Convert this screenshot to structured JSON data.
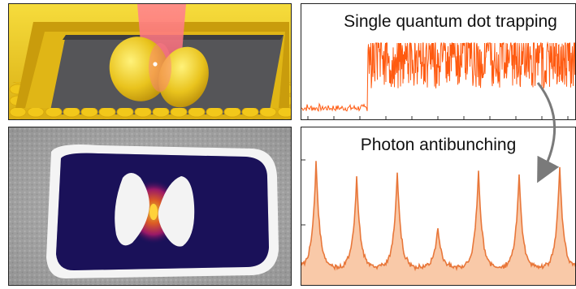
{
  "figure": {
    "panels": {
      "trapping_trace": {
        "title": "Single quantum dot trapping"
      },
      "antibunching": {
        "title": "Photon antibunching"
      }
    },
    "colors": {
      "gold": "#e8c21a",
      "laser": "#ff6a7a",
      "trace": "#ff5a10",
      "histogram_line": "#e8773a",
      "histogram_fill": "#f9c9a8",
      "arrow": "#7a7a7a"
    }
  },
  "chart_data": [
    {
      "type": "line",
      "title": "Single quantum dot trapping",
      "description_series": "noisy intensity time trace, low before trapping, jumps high after",
      "series": [
        {
          "values_before_trapping": [
            0.1,
            0.08,
            0.12,
            0.09,
            0.11
          ],
          "level_after_trapping": 0.55
        }
      ]
    },
    {
      "type": "area",
      "title": "Photon antibunching",
      "peaks": [
        {
          "index": 1,
          "height": 0.86
        },
        {
          "index": 2,
          "height": 0.74
        },
        {
          "index": 3,
          "height": 0.78
        },
        {
          "index": 4,
          "height": 0.33
        },
        {
          "index": 5,
          "height": 0.79
        },
        {
          "index": 6,
          "height": 0.75
        },
        {
          "index": 7,
          "height": 0.81
        }
      ]
    }
  ]
}
